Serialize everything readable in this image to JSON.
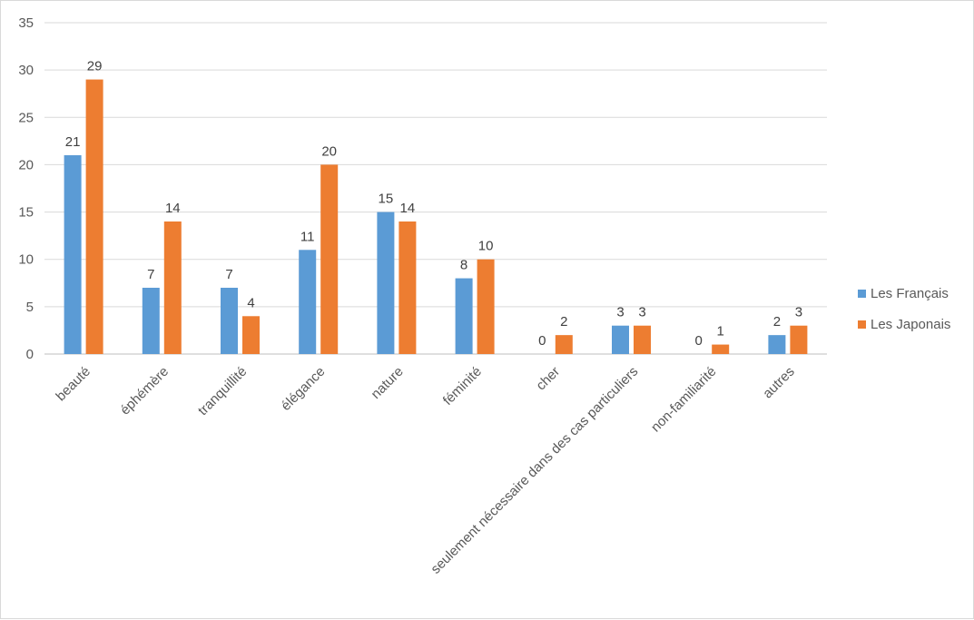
{
  "chart_data": {
    "type": "bar",
    "categories": [
      "beauté",
      "éphémère",
      "tranquillité",
      "élégance",
      "nature",
      "féminité",
      "cher",
      "seulement nécessaire dans des cas particuliers",
      "non-familiarité",
      "autres"
    ],
    "series": [
      {
        "name": "Les Français",
        "color": "#5b9bd5",
        "values": [
          21,
          7,
          7,
          11,
          15,
          8,
          0,
          3,
          0,
          2
        ]
      },
      {
        "name": "Les Japonais",
        "color": "#ed7d31",
        "values": [
          29,
          14,
          4,
          20,
          14,
          10,
          2,
          3,
          1,
          3
        ]
      }
    ],
    "ylim": [
      0,
      35
    ],
    "yticks": [
      0,
      5,
      10,
      15,
      20,
      25,
      30,
      35
    ],
    "grid": true,
    "legend": "right",
    "title": "",
    "xlabel": "",
    "ylabel": ""
  }
}
